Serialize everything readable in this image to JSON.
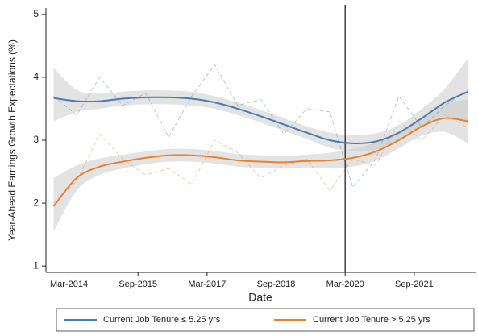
{
  "chart_data": {
    "type": "line",
    "ylabel": "Year-Ahead Earnings Growth Expectations (%)",
    "xlabel": "Date",
    "xlim": [
      "2013-09",
      "2023-01"
    ],
    "xticks": [
      {
        "value": "2014-03",
        "label": "Mar-2014"
      },
      {
        "value": "2015-09",
        "label": "Sep-2015"
      },
      {
        "value": "2017-03",
        "label": "Mar-2017"
      },
      {
        "value": "2018-09",
        "label": "Sep-2018"
      },
      {
        "value": "2020-03",
        "label": "Mar-2020"
      },
      {
        "value": "2021-09",
        "label": "Sep-2021"
      }
    ],
    "ylim": [
      0.9,
      5.1
    ],
    "yticks": [
      1,
      2,
      3,
      4,
      5
    ],
    "vline": "2020-03",
    "legend": "bottom",
    "x": [
      "2013-11",
      "2014-05",
      "2014-11",
      "2015-05",
      "2015-11",
      "2016-05",
      "2016-11",
      "2017-05",
      "2017-11",
      "2018-05",
      "2018-11",
      "2019-05",
      "2019-11",
      "2020-05",
      "2020-11",
      "2021-05",
      "2021-11",
      "2022-05",
      "2022-11"
    ],
    "series": [
      {
        "name": "Current Job Tenure ≤ 5.25 yrs",
        "color": "#4a7ab0",
        "values": [
          3.67,
          3.62,
          3.62,
          3.66,
          3.68,
          3.68,
          3.66,
          3.6,
          3.5,
          3.38,
          3.25,
          3.12,
          3.0,
          2.95,
          2.98,
          3.12,
          3.35,
          3.6,
          3.77
        ],
        "raw_values": [
          3.7,
          3.4,
          4.0,
          3.55,
          3.75,
          3.05,
          3.7,
          4.2,
          3.55,
          3.65,
          3.1,
          3.5,
          3.45,
          2.25,
          2.7,
          3.7,
          3.2,
          3.55,
          3.8
        ],
        "ci_lower": [
          3.3,
          3.45,
          3.5,
          3.55,
          3.57,
          3.57,
          3.55,
          3.5,
          3.4,
          3.28,
          3.15,
          3.02,
          2.88,
          2.82,
          2.85,
          3.0,
          3.2,
          3.38,
          3.25
        ],
        "ci_upper": [
          4.15,
          3.8,
          3.74,
          3.77,
          3.79,
          3.79,
          3.77,
          3.7,
          3.6,
          3.48,
          3.35,
          3.22,
          3.12,
          3.08,
          3.11,
          3.24,
          3.5,
          3.82,
          4.3
        ]
      },
      {
        "name": "Current Job Tenure > 5.25 yrs",
        "color": "#e8822e",
        "values": [
          1.95,
          2.4,
          2.58,
          2.66,
          2.72,
          2.76,
          2.76,
          2.73,
          2.68,
          2.66,
          2.65,
          2.67,
          2.68,
          2.72,
          2.82,
          3.0,
          3.22,
          3.35,
          3.3
        ],
        "raw_values": [
          2.0,
          2.35,
          3.1,
          2.7,
          2.45,
          2.55,
          2.3,
          3.0,
          2.8,
          2.4,
          2.6,
          2.7,
          2.2,
          2.7,
          2.6,
          3.3,
          3.0,
          3.4,
          3.2
        ],
        "ci_lower": [
          1.55,
          2.2,
          2.45,
          2.55,
          2.62,
          2.66,
          2.66,
          2.63,
          2.58,
          2.56,
          2.55,
          2.57,
          2.56,
          2.58,
          2.68,
          2.87,
          3.07,
          3.13,
          2.95
        ],
        "ci_upper": [
          2.4,
          2.6,
          2.71,
          2.77,
          2.82,
          2.86,
          2.86,
          2.83,
          2.78,
          2.76,
          2.75,
          2.77,
          2.8,
          2.86,
          2.96,
          3.13,
          3.37,
          3.57,
          3.65
        ]
      }
    ]
  }
}
